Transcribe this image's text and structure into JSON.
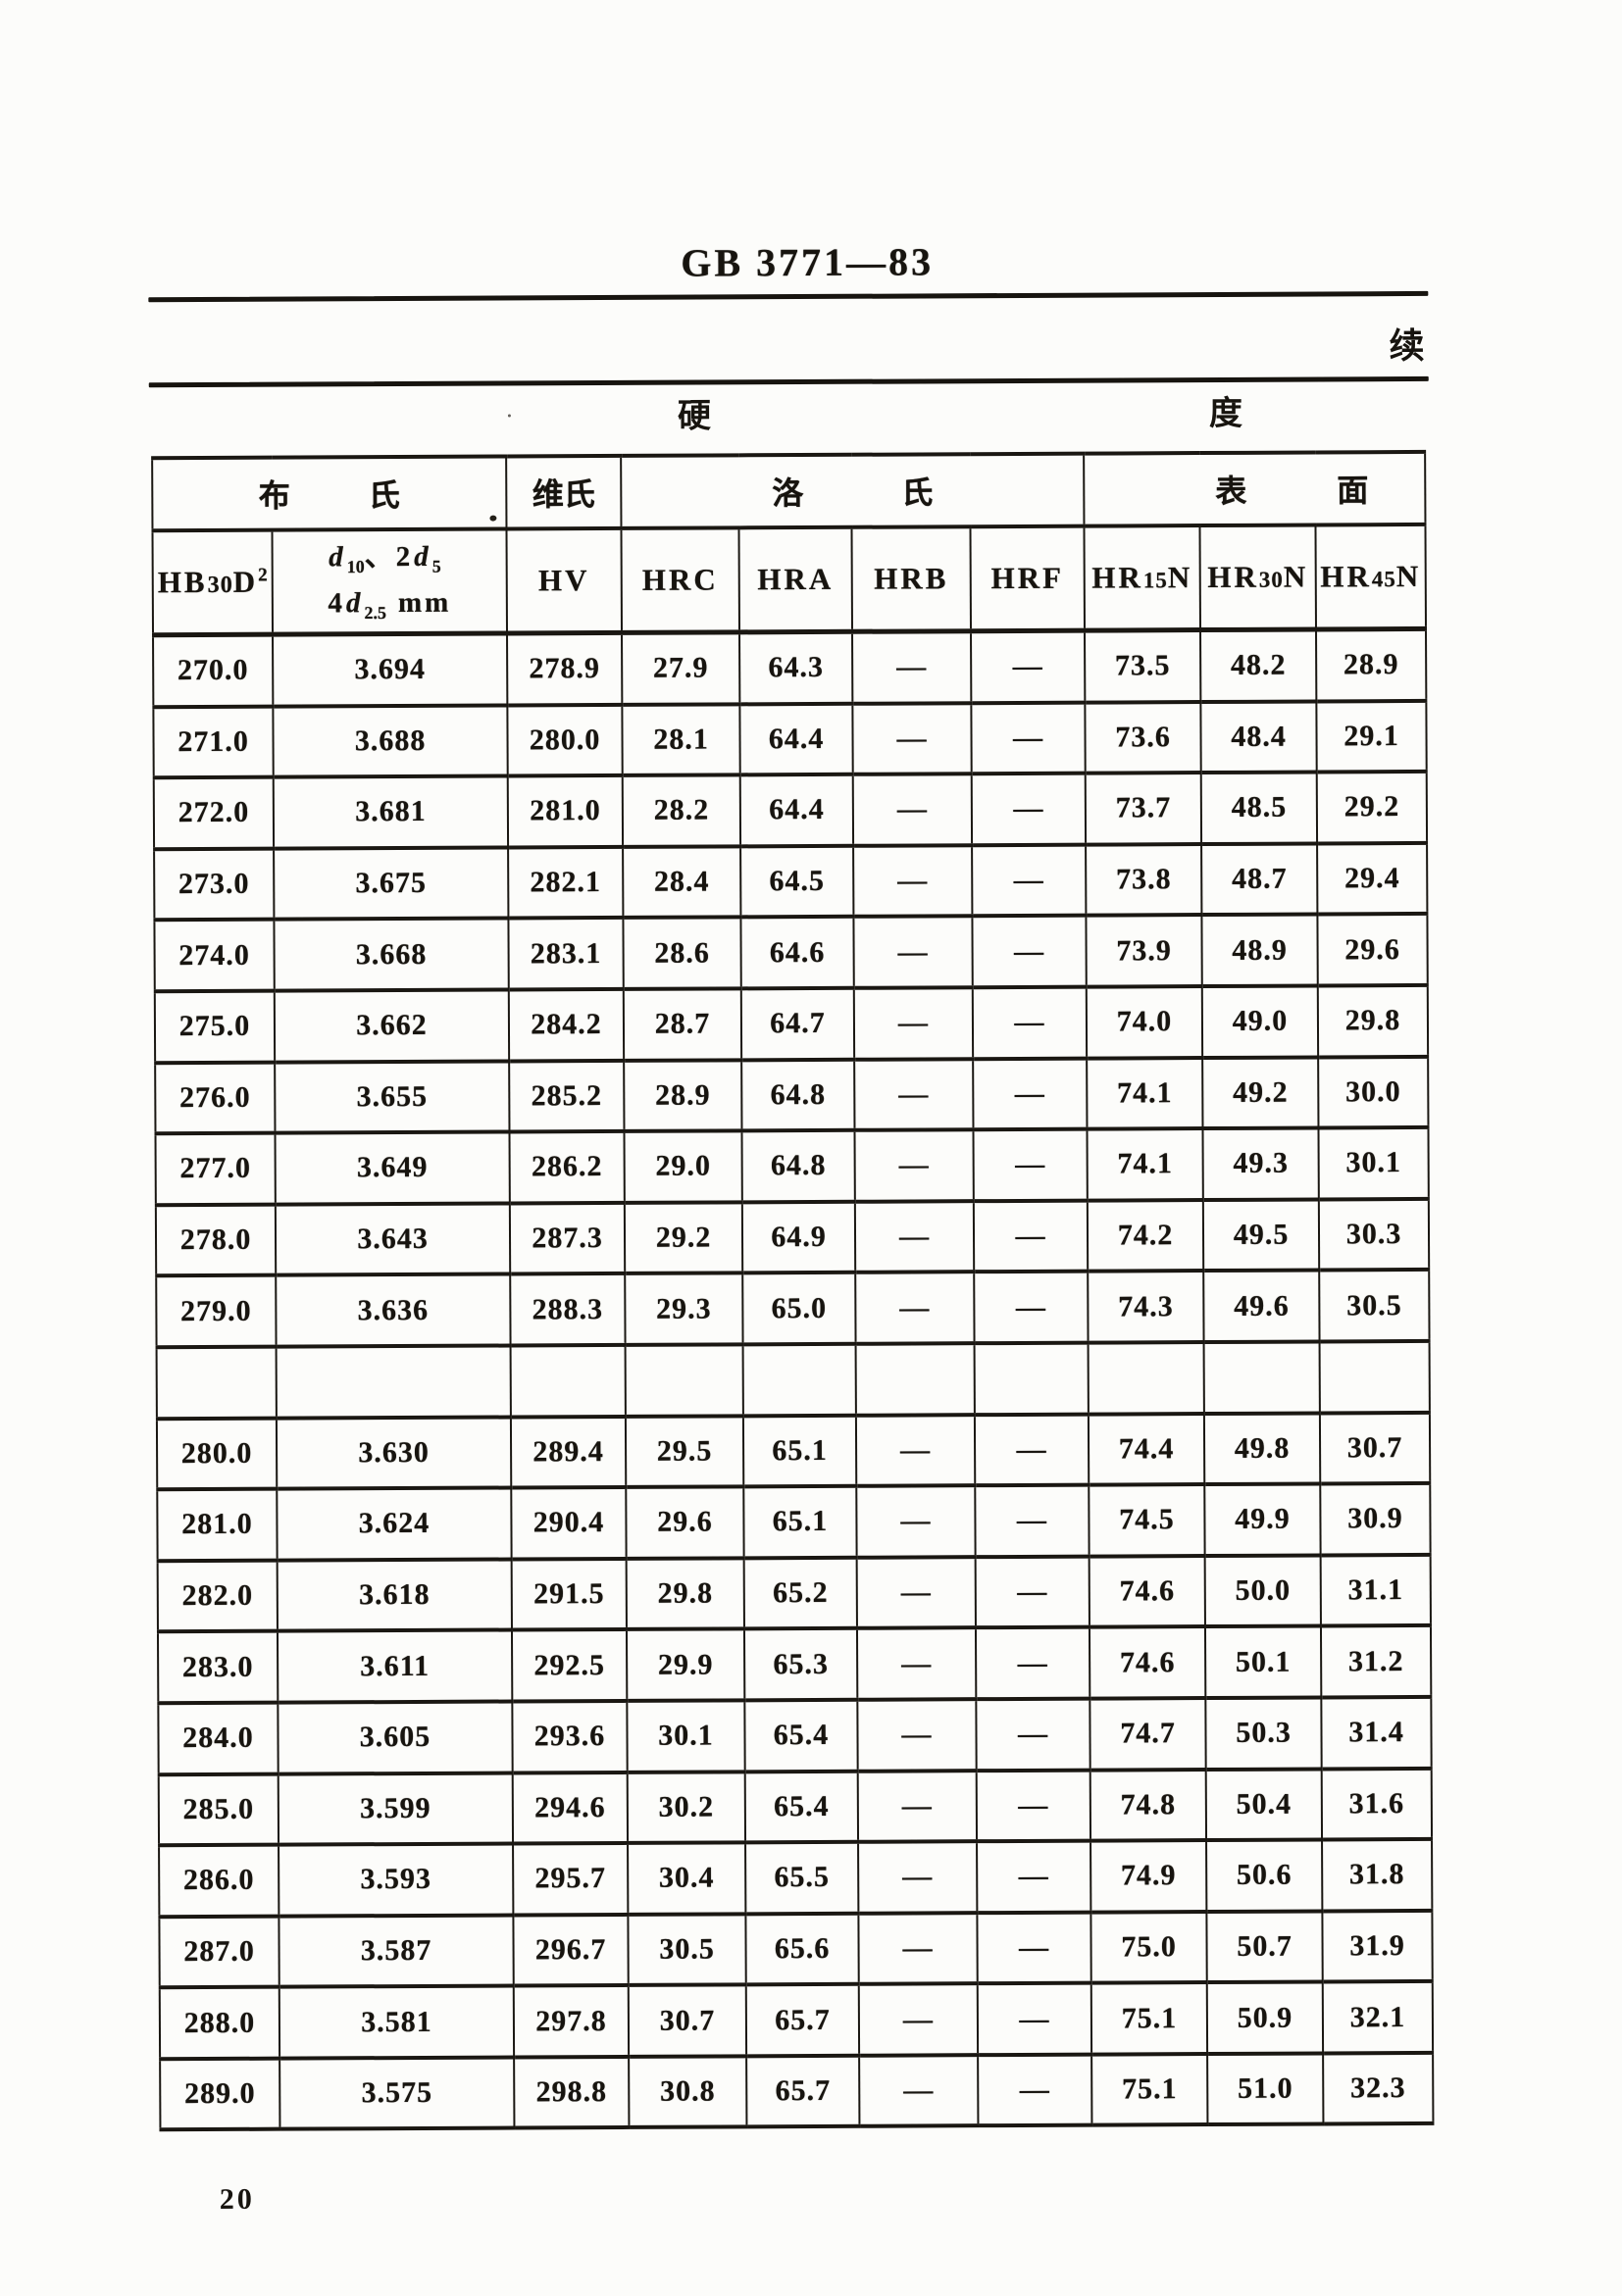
{
  "page": {
    "standard_code": "GB 3771—83",
    "continued_label": "续",
    "page_number": "20"
  },
  "table": {
    "title": {
      "char_left": "硬",
      "char_right": "度"
    },
    "groups": {
      "brinell": {
        "chars": [
          "布",
          "氏"
        ]
      },
      "vickers": {
        "label": "维氏"
      },
      "rockwell": {
        "chars": [
          "洛",
          "氏"
        ]
      },
      "superficial": {
        "chars": [
          "表",
          "面"
        ]
      }
    },
    "columns": {
      "hb": {
        "pre": "HB",
        "num": "30",
        "sym": "D",
        "sup": "2"
      },
      "d": {
        "d": "d",
        "sub10": "10",
        "mid": "、2",
        "sub5": "5",
        "pre4": "4",
        "sub25": "2.5",
        "unit": "mm"
      },
      "hv": "HV",
      "hrc": "HRC",
      "hra": "HRA",
      "hrb": "HRB",
      "hrf": "HRF",
      "hr15n": {
        "pre": "HR",
        "num": "15",
        "post": "N"
      },
      "hr30n": {
        "pre": "HR",
        "num": "30",
        "post": "N"
      },
      "hr45n": {
        "pre": "HR",
        "num": "45",
        "post": "N"
      }
    },
    "rows": [
      [
        "270.0",
        "3.694",
        "278.9",
        "27.9",
        "64.3",
        "—",
        "—",
        "73.5",
        "48.2",
        "28.9"
      ],
      [
        "271.0",
        "3.688",
        "280.0",
        "28.1",
        "64.4",
        "—",
        "—",
        "73.6",
        "48.4",
        "29.1"
      ],
      [
        "272.0",
        "3.681",
        "281.0",
        "28.2",
        "64.4",
        "—",
        "—",
        "73.7",
        "48.5",
        "29.2"
      ],
      [
        "273.0",
        "3.675",
        "282.1",
        "28.4",
        "64.5",
        "—",
        "—",
        "73.8",
        "48.7",
        "29.4"
      ],
      [
        "274.0",
        "3.668",
        "283.1",
        "28.6",
        "64.6",
        "—",
        "—",
        "73.9",
        "48.9",
        "29.6"
      ],
      [
        "275.0",
        "3.662",
        "284.2",
        "28.7",
        "64.7",
        "—",
        "—",
        "74.0",
        "49.0",
        "29.8"
      ],
      [
        "276.0",
        "3.655",
        "285.2",
        "28.9",
        "64.8",
        "—",
        "—",
        "74.1",
        "49.2",
        "30.0"
      ],
      [
        "277.0",
        "3.649",
        "286.2",
        "29.0",
        "64.8",
        "—",
        "—",
        "74.1",
        "49.3",
        "30.1"
      ],
      [
        "278.0",
        "3.643",
        "287.3",
        "29.2",
        "64.9",
        "—",
        "—",
        "74.2",
        "49.5",
        "30.3"
      ],
      [
        "279.0",
        "3.636",
        "288.3",
        "29.3",
        "65.0",
        "—",
        "—",
        "74.3",
        "49.6",
        "30.5"
      ],
      [
        "",
        "",
        "",
        "",
        "",
        "",
        "",
        "",
        "",
        ""
      ],
      [
        "280.0",
        "3.630",
        "289.4",
        "29.5",
        "65.1",
        "—",
        "—",
        "74.4",
        "49.8",
        "30.7"
      ],
      [
        "281.0",
        "3.624",
        "290.4",
        "29.6",
        "65.1",
        "—",
        "—",
        "74.5",
        "49.9",
        "30.9"
      ],
      [
        "282.0",
        "3.618",
        "291.5",
        "29.8",
        "65.2",
        "—",
        "—",
        "74.6",
        "50.0",
        "31.1"
      ],
      [
        "283.0",
        "3.611",
        "292.5",
        "29.9",
        "65.3",
        "—",
        "—",
        "74.6",
        "50.1",
        "31.2"
      ],
      [
        "284.0",
        "3.605",
        "293.6",
        "30.1",
        "65.4",
        "—",
        "—",
        "74.7",
        "50.3",
        "31.4"
      ],
      [
        "285.0",
        "3.599",
        "294.6",
        "30.2",
        "65.4",
        "—",
        "—",
        "74.8",
        "50.4",
        "31.6"
      ],
      [
        "286.0",
        "3.593",
        "295.7",
        "30.4",
        "65.5",
        "—",
        "—",
        "74.9",
        "50.6",
        "31.8"
      ],
      [
        "287.0",
        "3.587",
        "296.7",
        "30.5",
        "65.6",
        "—",
        "—",
        "75.0",
        "50.7",
        "31.9"
      ],
      [
        "288.0",
        "3.581",
        "297.8",
        "30.7",
        "65.7",
        "—",
        "—",
        "75.1",
        "50.9",
        "32.1"
      ],
      [
        "289.0",
        "3.575",
        "298.8",
        "30.8",
        "65.7",
        "—",
        "—",
        "75.1",
        "51.0",
        "32.3"
      ]
    ]
  }
}
